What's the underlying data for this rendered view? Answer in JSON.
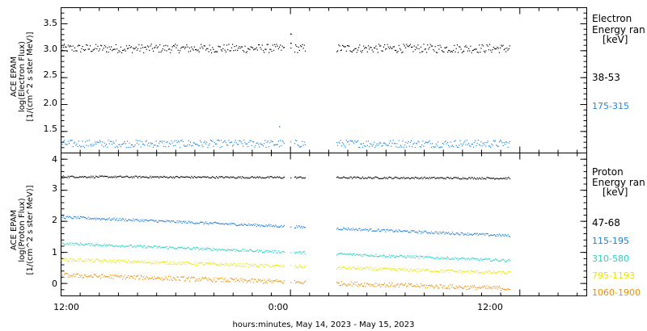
{
  "chart_data": [
    {
      "type": "scatter",
      "ylabel": [
        "ACE EPAM",
        "log(Electron Flux)",
        "[1/(cm^2 s ster MeV)]"
      ],
      "ylim": [
        1.1,
        3.8
      ],
      "yticks": [
        "1.5",
        "2.0",
        "2.5",
        "3.0",
        "3.5"
      ],
      "legend_title": [
        "Electron",
        "Energy ran",
        "[keV]"
      ],
      "series": [
        {
          "name": "38-53",
          "color": "#000000",
          "base": 3.05,
          "noise": 0.08,
          "trend": 0.0
        },
        {
          "name": "175-315",
          "color": "#1e88e5",
          "base": 1.28,
          "noise": 0.07,
          "trend": 0.0
        }
      ],
      "annotations": [
        {
          "x": 0.0,
          "y": 3.32
        },
        {
          "x": 0.0,
          "y": 3.15
        },
        {
          "x": -0.6,
          "y": 1.6
        }
      ]
    },
    {
      "type": "scatter",
      "ylabel": [
        "ACE EPAM",
        "log(Proton Flux)",
        "[1/(cm^2 s ster MeV)]"
      ],
      "ylim": [
        -0.4,
        4.2
      ],
      "yticks": [
        "0",
        "1",
        "2",
        "3",
        "4"
      ],
      "legend_title": [
        "Proton",
        "Energy ran",
        "[keV]"
      ],
      "series": [
        {
          "name": "47-68",
          "color": "#000000",
          "base": 3.45,
          "end": 3.4,
          "noise": 0.03
        },
        {
          "name": "115-195",
          "color": "#1e7fd8",
          "base": 2.15,
          "end": 1.55,
          "noise": 0.04
        },
        {
          "name": "310-580",
          "color": "#22d3c5",
          "base": 1.3,
          "end": 0.75,
          "noise": 0.04
        },
        {
          "name": "795-1193",
          "color": "#e6e600",
          "base": 0.78,
          "end": 0.35,
          "noise": 0.05
        },
        {
          "name": "1060-1900",
          "color": "#f08c00",
          "base": 0.28,
          "end": -0.15,
          "noise": 0.07
        }
      ]
    }
  ],
  "x_axis": {
    "label": "hours:minutes, May 14, 2023 - May 15, 2023",
    "range_hours": [
      -12,
      15.5
    ],
    "data_range_hours": [
      -12,
      11.5
    ],
    "gaps_hours": [
      [
        -0.3,
        0.0
      ],
      [
        0.05,
        0.2
      ],
      [
        0.8,
        2.4
      ]
    ],
    "ticks": [
      {
        "hour": -12,
        "label": "12:00"
      },
      {
        "hour": 0,
        "label": "0:00"
      },
      {
        "hour": 12,
        "label": "12:00"
      }
    ],
    "minor_tick_hours": 1
  }
}
